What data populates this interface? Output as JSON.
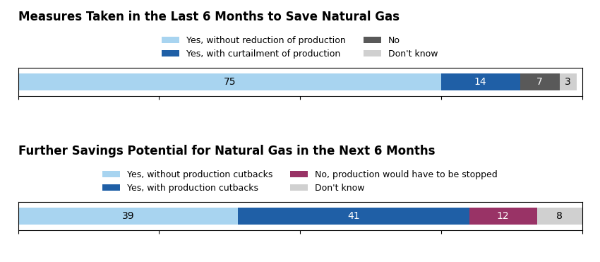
{
  "chart_data": [
    {
      "type": "bar",
      "orientation": "horizontal",
      "stacked": true,
      "title": "Measures Taken in the Last 6 Months to Save Natural Gas",
      "categories": [
        null
      ],
      "series": [
        {
          "name": "Yes, without reduction of production",
          "color": "#a8d4f0",
          "values": [
            75
          ]
        },
        {
          "name": "Yes, with curtailment of production",
          "color": "#1f5fa6",
          "values": [
            14
          ]
        },
        {
          "name": "No",
          "color": "#595959",
          "values": [
            7
          ]
        },
        {
          "name": "Don't know",
          "color": "#d0d0d0",
          "values": [
            3
          ]
        }
      ],
      "xlim": [
        0,
        100
      ],
      "xticks": [
        0,
        25,
        50,
        75,
        100
      ],
      "tick_labels": false,
      "data_labels": true,
      "legend": "lower center"
    },
    {
      "type": "bar",
      "orientation": "horizontal",
      "stacked": true,
      "title": "Further Savings Potential for Natural Gas in the Next 6 Months",
      "categories": [
        null
      ],
      "series": [
        {
          "name": "Yes, without production cutbacks",
          "color": "#a8d4f0",
          "values": [
            39
          ]
        },
        {
          "name": "Yes, with production cutbacks",
          "color": "#1f5fa6",
          "values": [
            41
          ]
        },
        {
          "name": "No, production would have to be stopped",
          "color": "#993366",
          "values": [
            12
          ]
        },
        {
          "name": "Don't know",
          "color": "#d0d0d0",
          "values": [
            8
          ]
        }
      ],
      "xlim": [
        0,
        100
      ],
      "xticks": [
        0,
        25,
        50,
        75,
        100
      ],
      "tick_labels": false,
      "data_labels": true,
      "legend": "lower center"
    }
  ]
}
